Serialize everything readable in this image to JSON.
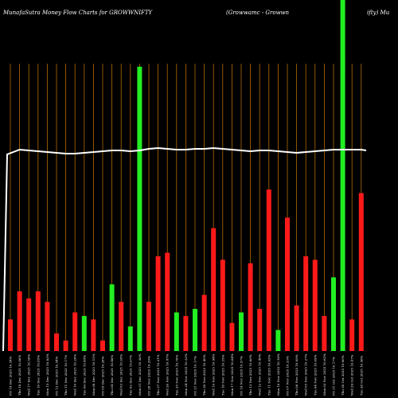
{
  "chart_data": {
    "type": "bar",
    "title": "MunafaSutra  Money Flow  Charts for GROWWNIFTY",
    "subtitle": "(Growwamc - Growwn",
    "title_right": "ifty) Mu",
    "colors": {
      "background": "#000000",
      "up": "#22ee22",
      "down": "#ff1a1a",
      "grid": "#b36b00",
      "line": "#ffffff"
    },
    "grid": true,
    "ylim": [
      0,
      100
    ],
    "categories": [
      "Fri 19 Dec 2025 10.54%",
      "Thu 18 Dec 2025 10.86%",
      "Wed 17 Dec 2025 10.56%",
      "Tue 16 Dec 2025 10.85%",
      "Mon 15 Dec 2025 10.83%",
      "Fri 12 Dec 2025 10.54%",
      "Thu 11 Dec 2025 10.17%",
      "Wed 10 Dec 2025 10.26%",
      "Tue 09 Dec 2025 10.44%",
      "Mon 08 Dec 2025 10.15%",
      "Fri 05 Dec 2025 10.28%",
      "Thu 04 Dec 2025 10.48%",
      "Wed 03 Dec 2025 10.95%",
      "Tue 02 Dec 2025 10.67%",
      "Mon 01 Dec 2025 10.36%",
      "Fri 28 Nov 2025 10.39%",
      "Thu 27 Nov 2025 10.21%",
      "Wed 26 Nov 2025 10.47%",
      "Tue 25 Nov 2025 10.78%",
      "Mon 24 Nov 2025 10.32%",
      "Fri 21 Nov 2025 10.17%",
      "Thu 20 Nov 2025 10.40%",
      "Wed 19 Nov 2025 10.94%",
      "Tue 18 Nov 2025 10.35%",
      "Mon 17 Nov 2025 10.84%",
      "Fri 14 Nov 2025 10.57%",
      "Thu 13 Nov 2025 10.66%",
      "Wed 12 Nov 2025 10.40%",
      "Tue 11 Nov 2025 10.93%",
      "Mon 10 Nov 2025 10.16%",
      "Fri 07 Nov 2025 10.33%",
      "Thu 06 Nov 2025 10.08%",
      "Wed 05 Nov 2025 10.27%",
      "Tue 04 Nov 2025 10.09%",
      "Mon 03 Nov 2025 10.62%",
      "Fri 31 Oct 2025 10.17%",
      "Thu 30 Oct 2025 10.96%",
      "Wed 29 Oct 2025 10.47%",
      "Tue 28 Oct 2025 10.56%"
    ],
    "series": [
      {
        "values": [
          9,
          17,
          15,
          17,
          14,
          5,
          3,
          11,
          10,
          9,
          3,
          19,
          14,
          7,
          81,
          14,
          27,
          28,
          11,
          10,
          12,
          16,
          35,
          26,
          8,
          11,
          25,
          12,
          46,
          6,
          38,
          13,
          27,
          26,
          10,
          21,
          100,
          9,
          45
        ],
        "directions": [
          "down",
          "down",
          "down",
          "down",
          "down",
          "down",
          "down",
          "down",
          "up",
          "down",
          "down",
          "up",
          "down",
          "up",
          "up",
          "down",
          "down",
          "down",
          "up",
          "down",
          "up",
          "down",
          "down",
          "down",
          "down",
          "up",
          "down",
          "down",
          "down",
          "up",
          "down",
          "down",
          "down",
          "down",
          "down",
          "up",
          "up",
          "down",
          "down"
        ]
      },
      {
        "name": "price-line",
        "values": [
          20,
          20,
          20,
          20,
          20,
          20,
          20,
          20,
          20,
          20,
          20,
          20,
          20,
          20,
          20,
          20,
          20,
          20,
          20,
          20,
          20,
          20,
          20,
          20,
          20,
          20,
          20,
          20,
          20,
          20,
          20,
          20,
          20,
          20,
          20,
          20,
          20,
          20,
          20
        ]
      }
    ]
  }
}
